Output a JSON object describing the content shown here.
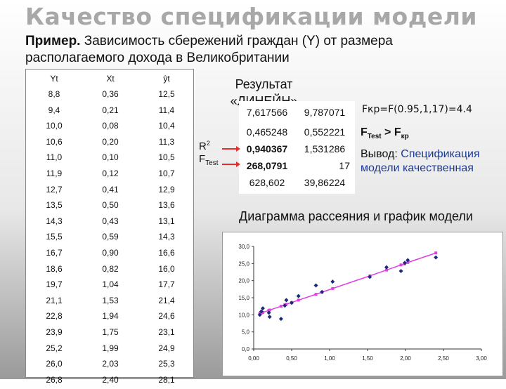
{
  "slide": {
    "title": "Качество спецификации модели",
    "subtitle_bold": "Пример.",
    "subtitle_rest": " Зависимость сбережений граждан (Y) от размера располагаемого  дохода в Великобритании"
  },
  "table": {
    "headers": [
      "Yt",
      "Xt",
      "ŷt"
    ],
    "rows": [
      [
        "8,8",
        "0,36",
        "12,5"
      ],
      [
        "9,4",
        "0,21",
        "11,4"
      ],
      [
        "10,0",
        "0,08",
        "10,4"
      ],
      [
        "10,6",
        "0,20",
        "11,3"
      ],
      [
        "11,0",
        "0,10",
        "10,5"
      ],
      [
        "11,9",
        "0,12",
        "10,7"
      ],
      [
        "12,7",
        "0,41",
        "12,9"
      ],
      [
        "13,5",
        "0,50",
        "13,6"
      ],
      [
        "14,3",
        "0,43",
        "13,1"
      ],
      [
        "15,5",
        "0,59",
        "14,3"
      ],
      [
        "16,7",
        "0,90",
        "16,6"
      ],
      [
        "18,6",
        "0,82",
        "16,0"
      ],
      [
        "19,7",
        "1,04",
        "17,7"
      ],
      [
        "21,1",
        "1,53",
        "21,4"
      ],
      [
        "22,8",
        "1,94",
        "24,6"
      ],
      [
        "23,9",
        "1,75",
        "23,1"
      ],
      [
        "25,2",
        "1,99",
        "24,9"
      ],
      [
        "26,0",
        "2,03",
        "25,3"
      ],
      [
        "26,8",
        "2,40",
        "28,1"
      ]
    ]
  },
  "linest": {
    "caption": "Результат «ЛИНЕЙН»",
    "grid": [
      [
        "7,617566",
        "9,787071"
      ],
      [
        "0,465248",
        "0,552221"
      ],
      [
        "0,940367",
        "1,531286"
      ],
      [
        "268,0791",
        "17"
      ],
      [
        "628,602",
        "39,86224"
      ]
    ],
    "r2_label": "R",
    "r2_sup": "2",
    "ftest_label": "F",
    "ftest_sub": "Test"
  },
  "fkr_text": "Fкр=F(0.95,1,17)=4.4",
  "ftest_cmp": {
    "f": "F",
    "sub1": "Test",
    "gt": " > F",
    "sub2": "кр"
  },
  "conclusion": {
    "label": "Вывод: ",
    "text": "Спецификация модели качественная"
  },
  "chart_caption": "Диаграмма рассеяния и график модели",
  "colors": {
    "points": "#1b2a7a",
    "model_line": "#e040e0",
    "title_gray": "#a8a8a8"
  },
  "chart_data": {
    "type": "scatter",
    "title": "",
    "xlabel": "",
    "ylabel": "",
    "xlim": [
      0,
      3
    ],
    "ylim": [
      0,
      30
    ],
    "x_ticks": [
      "0,00",
      "0,50",
      "1,00",
      "1,50",
      "2,00",
      "2,50",
      "3,00"
    ],
    "y_ticks": [
      "0,0",
      "5,0",
      "10,0",
      "15,0",
      "20,0",
      "25,0",
      "30,0"
    ],
    "grid": false,
    "series": [
      {
        "marker": "diamond",
        "x": [
          0.36,
          0.21,
          0.08,
          0.2,
          0.1,
          0.12,
          0.41,
          0.5,
          0.43,
          0.59,
          0.9,
          0.82,
          1.04,
          1.53,
          1.94,
          1.75,
          1.99,
          2.03,
          2.4
        ],
        "y": [
          8.8,
          9.4,
          10.0,
          10.6,
          11.0,
          11.9,
          12.7,
          13.5,
          14.3,
          15.5,
          16.7,
          18.6,
          19.7,
          21.1,
          22.8,
          23.9,
          25.2,
          26.0,
          26.8
        ]
      },
      {
        "marker": "square-line",
        "x": [
          0.08,
          0.1,
          0.12,
          0.2,
          0.21,
          0.36,
          0.41,
          0.43,
          0.5,
          0.59,
          0.82,
          0.9,
          1.04,
          1.53,
          1.75,
          1.94,
          1.99,
          2.03,
          2.4
        ],
        "y": [
          10.4,
          10.5,
          10.7,
          11.3,
          11.4,
          12.5,
          12.9,
          13.1,
          13.6,
          14.3,
          16.0,
          16.6,
          17.7,
          21.4,
          23.1,
          24.6,
          24.9,
          25.3,
          28.1
        ]
      }
    ]
  }
}
